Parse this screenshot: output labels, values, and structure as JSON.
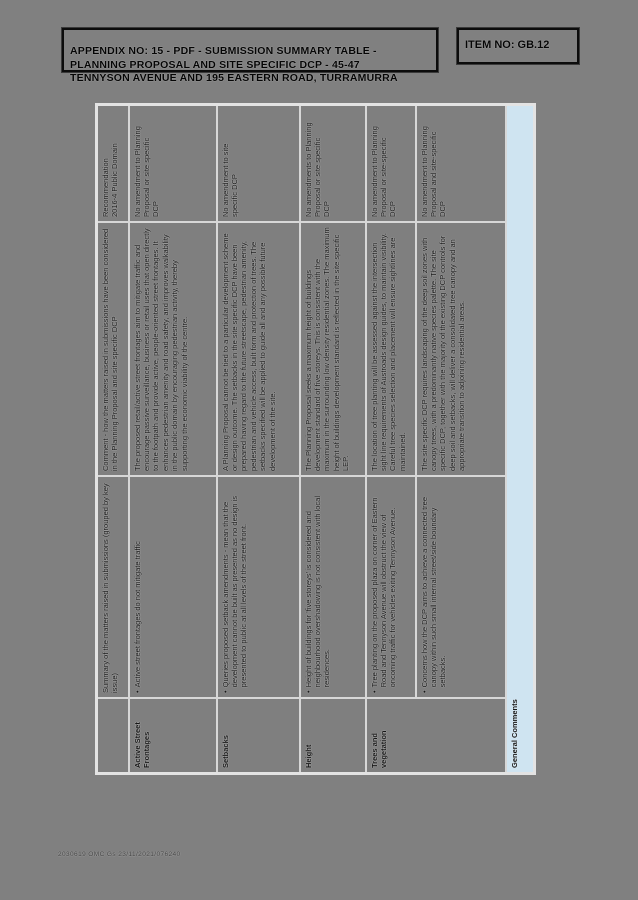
{
  "header": {
    "appendix_title": "APPENDIX NO: 15 - PDF - SUBMISSION SUMMARY TABLE -\nPLANNING PROPOSAL AND SITE SPECIFIC DCP - 45-47\nTENNYSON AVENUE AND 195 EASTERN ROAD, TURRAMURRA",
    "item_no": "ITEM NO: GB.12"
  },
  "table": {
    "bullet": "•",
    "column_headers": {
      "topic": "",
      "submission": "Summary of the matters raised in submissions (grouped by key issue)",
      "comment": "Comment - how the matters raised in submissions have been considered in the Planning Proposal and site specific DCP",
      "recommendation": "Recommendation\n2016-4 Public Domain"
    },
    "rows": [
      {
        "topic": "Active Street Frontages",
        "submission": "Active street frontages do not mitigate traffic",
        "comment": "The proposed retail/active street frontages aim to mitigate traffic and encourage passive surveillance, business or retail uses that open directly to the footpath and provide active, people-oriented street frontages. It enhances pedestrian amenity and road safety, and improves walkability in the public domain by encouraging pedestrian activity, thereby supporting the economic viability of the centre.",
        "recommendation": "No amendment to Planning\nProposal or site specific\nDCP"
      },
      {
        "topic": "Setbacks",
        "submission": "Queries proposed setback amendments - mean that the development cannot be built as presented as no design is presented to public at all levels of the street front.",
        "comment": "A Planning Proposal cannot be tied to a particular development scheme or design outcome. The setbacks in the site specific DCP have been prepared having regard to the future streetscape, pedestrian amenity, pedestrian and vehicle access, built form and protection of trees. The setbacks specified will be applied to guide all and any possible future development of the site.",
        "recommendation": "No amendment to site\nspecific DCP"
      },
      {
        "topic": "Height",
        "submission": "Height of buildings for 'five storeys' is considered and neighbourhood overshadowing is not consistent with local residences.",
        "comment": "The Planning Proposal seeks a maximum height of buildings development standard of five storeys. This is consistent with the maximum in the surrounding low density residential zones. The maximum height of buildings development standard is reflected in the site specific LEP.",
        "recommendation": "No amendments to Planning\nProposal or site specific\nDCP"
      },
      {
        "topic": "Trees and vegetation",
        "submission": "Tree planting on the proposed plaza on corner of Eastern Road and Tennyson Avenue will obstruct the view of oncoming traffic for vehicles exiting Tennyson Avenue.",
        "comment": "The location of tree planting will be assessed against the intersection sight line requirements of Austroads design guides, to maintain visibility. Careful tree species selection and placement will ensure sightlines are maintained.",
        "recommendation": "No amendment to Planning\nProposal or site-specific\nDCP"
      },
      {
        "submission": "Concerns how the DCP aims to achieve a connected tree canopy within such small internal street/side boundary setbacks.",
        "comment": "The site specific DCP requires landscaping of the deep soil zones with canopy trees, with a predominantly native species palette. The site specific DCP, together with the majority of the existing DCP controls for deep soil and setbacks, will deliver a consolidated tree canopy and an appropriate transition to adjoining residential areas.",
        "recommendation": "No amendment to Planning\nProposal and site-specific\nDCP"
      },
      {
        "topic": "General Comments"
      }
    ]
  },
  "footer": {
    "reference": "2030619 OMC Gs 23/11/2021/076240"
  },
  "colors": {
    "page_bg": "#808080",
    "grid_line": "#d7d7d7",
    "highlight_row": "#cfe4f1",
    "box_border": "#0c0c0c",
    "text": "#161616"
  }
}
